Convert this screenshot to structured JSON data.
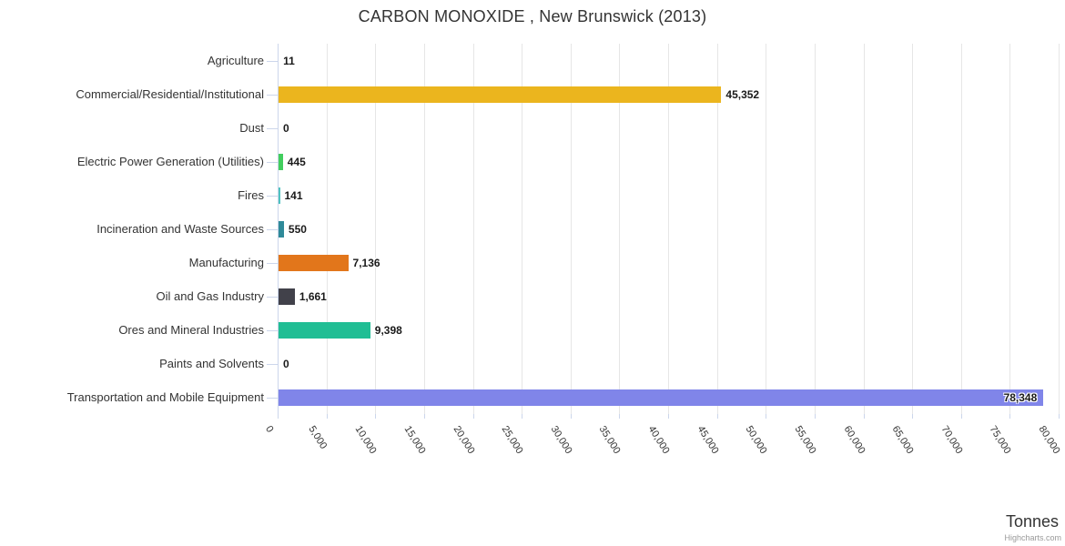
{
  "credits": "Highcharts.com",
  "chart_data": {
    "type": "bar",
    "orientation": "horizontal",
    "title": "CARBON MONOXIDE , New Brunswick (2013)",
    "xlabel": "",
    "ylabel": "Tonnes",
    "legend_position": "none",
    "grid": true,
    "categories": [
      "Agriculture",
      "Commercial/Residential/Institutional",
      "Dust",
      "Electric Power Generation (Utilities)",
      "Fires",
      "Incineration and Waste Sources",
      "Manufacturing",
      "Oil and Gas Industry",
      "Ores and Mineral Industries",
      "Paints and Solvents",
      "Transportation and Mobile Equipment"
    ],
    "values": [
      11,
      45352,
      0,
      445,
      141,
      550,
      7136,
      1661,
      9398,
      0,
      78348
    ],
    "value_labels": [
      "11",
      "45,352",
      "0",
      "445",
      "141",
      "550",
      "7,136",
      "1,661",
      "9,398",
      "0",
      "78,348"
    ],
    "colors": [
      "#7cb5ec",
      "#ebb51e",
      "#cccccc",
      "#42ce5e",
      "#4fc2c0",
      "#2f8a99",
      "#e2761b",
      "#41414a",
      "#20be94",
      "#cccccc",
      "#8085e9"
    ],
    "label_inside": [
      false,
      false,
      false,
      false,
      false,
      false,
      false,
      false,
      false,
      false,
      true
    ],
    "axis": {
      "min": 0,
      "max": 80000,
      "tick_interval": 5000,
      "tick_labels": [
        "0",
        "5,000",
        "10,000",
        "15,000",
        "20,000",
        "25,000",
        "30,000",
        "35,000",
        "40,000",
        "45,000",
        "50,000",
        "55,000",
        "60,000",
        "65,000",
        "70,000",
        "75,000",
        "80,000"
      ]
    },
    "text_colors": {
      "title": "#333333",
      "labels": "#333333",
      "grid": "#e6e6e6",
      "axis_line": "#ccd6eb"
    }
  }
}
